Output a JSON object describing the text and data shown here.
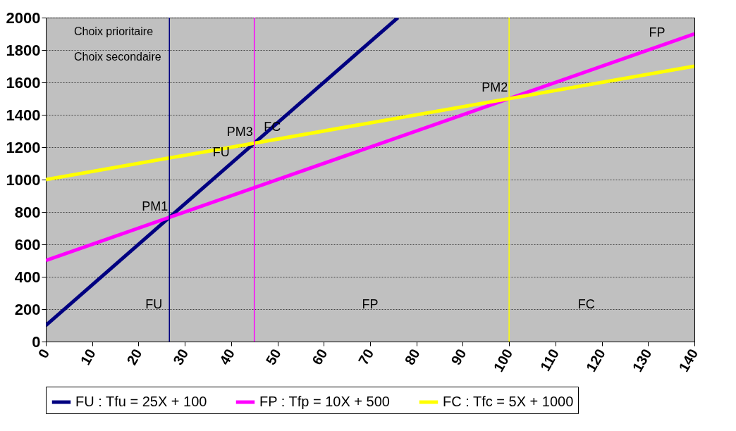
{
  "chart_data": {
    "type": "line",
    "xlim": [
      0,
      140
    ],
    "xticks": [
      0,
      10,
      20,
      30,
      40,
      50,
      60,
      70,
      80,
      90,
      100,
      110,
      120,
      130,
      140
    ],
    "ylim": [
      0,
      2000
    ],
    "yticks": [
      0,
      200,
      400,
      600,
      800,
      1000,
      1200,
      1400,
      1600,
      1800,
      2000
    ],
    "grid": "y",
    "legend": "bottom",
    "marker": "none",
    "line_style": "solid",
    "series": [
      {
        "name": "FU : Tfu = 25X + 100",
        "color": "#000080",
        "x": [
          0,
          76
        ],
        "values": [
          100,
          2000
        ]
      },
      {
        "name": "FP : Tfp = 10X + 500",
        "color": "#ff00ff",
        "x": [
          0,
          140
        ],
        "values": [
          500,
          1900
        ]
      },
      {
        "name": "FC : Tfc = 5X + 1000",
        "color": "#ffff00",
        "x": [
          0,
          140
        ],
        "values": [
          1000,
          1700
        ]
      }
    ],
    "ref_lines": [
      {
        "axis": "x",
        "value": 26.67,
        "color": "#000080"
      },
      {
        "axis": "x",
        "value": 45,
        "color": "#ff00ff"
      },
      {
        "axis": "x",
        "value": 100,
        "color": "#ffff00"
      }
    ],
    "annotations": [
      "Choix prioritaire",
      "Choix secondaire",
      "FU",
      "FP",
      "FC",
      {
        "text": "PM1",
        "x": 26.67,
        "y": 767
      },
      {
        "text": "PM3",
        "x": 45,
        "y": 1225
      },
      {
        "text": "PM2",
        "x": 100,
        "y": 1500
      },
      {
        "text": "FU",
        "x": 40,
        "y": 1100
      },
      {
        "text": "FC",
        "x": 51,
        "y": 1255
      },
      {
        "text": "FP",
        "x": 134,
        "y": 1840
      }
    ]
  }
}
